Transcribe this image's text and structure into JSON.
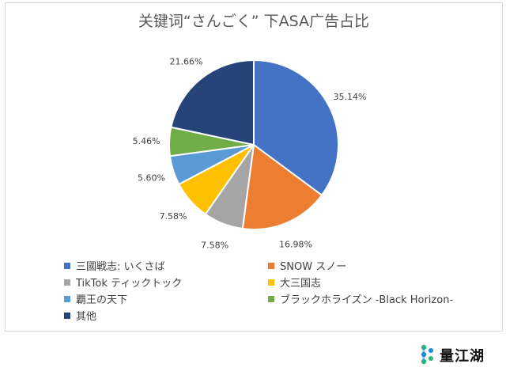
{
  "chart_data": {
    "type": "pie",
    "title": "关键词“さんごく” 下ASA广告占比",
    "slices": [
      {
        "label": "三國戦志: いくさば",
        "value": 35.14,
        "display": "35.14%",
        "color": "#4472c4"
      },
      {
        "label": "SNOW スノー",
        "value": 16.98,
        "display": "16.98%",
        "color": "#ed7d31"
      },
      {
        "label": "TikTok ティックトック",
        "value": 7.58,
        "display": "7.58%",
        "color": "#a5a5a5"
      },
      {
        "label": "大三国志",
        "value": 7.58,
        "display": "7.58%",
        "color": "#ffc000"
      },
      {
        "label": "覇王の天下",
        "value": 5.6,
        "display": "5.60%",
        "color": "#5b9bd5"
      },
      {
        "label": "ブラックホライズン -Black Horizon-",
        "value": 5.46,
        "display": "5.46%",
        "color": "#70ad47"
      },
      {
        "label": "其他",
        "value": 21.66,
        "display": "21.66%",
        "color": "#264478"
      }
    ],
    "legend_position": "bottom"
  },
  "brand": {
    "name": "量江湖"
  }
}
